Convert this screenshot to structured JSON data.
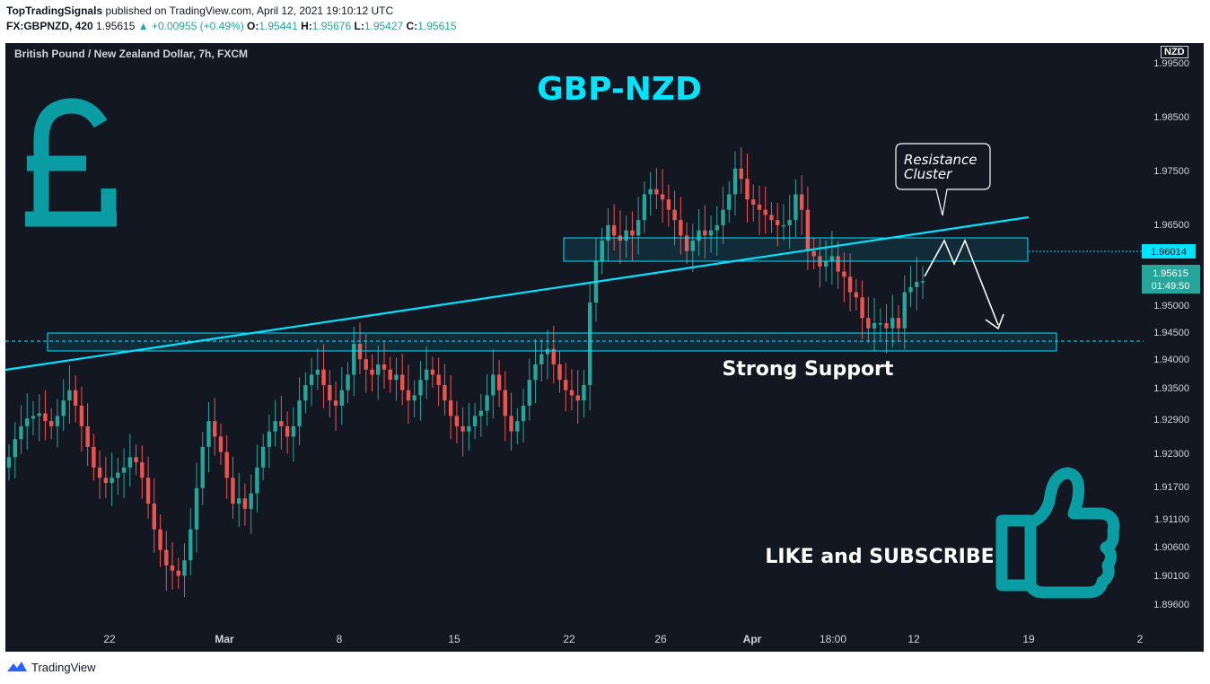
{
  "header": {
    "publisher": "TopTradingSignals",
    "published_text": " published on TradingView.com, April 12, 2021 19:10:12 UTC",
    "symbol": "FX:GBPNZD, 420",
    "last": " 1.95615 ",
    "change": "▲ +0.00955 (+0.49%)",
    "o_label": " O:",
    "o_val": "1.95441",
    "h_label": " H:",
    "h_val": "1.95676",
    "l_label": " L:",
    "l_val": "1.95427",
    "c_label": " C:",
    "c_val": "1.95615"
  },
  "chart_title": "British Pound / New Zealand Dollar, 7h, FXCM",
  "currency": "NZD",
  "annotations": {
    "pair_title": "GBP-NZD",
    "resistance": [
      "Resistance",
      "Cluster"
    ],
    "support": "Strong Support",
    "cta": "LIKE and SUBSCRIBE"
  },
  "price_labels": {
    "line": "1.96014",
    "last": "1.95615",
    "countdown": "01:49:50"
  },
  "footer": {
    "brand": "TradingView"
  },
  "colors": {
    "background": "#131722",
    "up": "#26a69a",
    "down": "#ef5350",
    "cyan": "#00e5ff",
    "teal_icon": "#0a9da4",
    "text": "#d1d4dc"
  },
  "chart_data": {
    "type": "candlestick",
    "title": "British Pound / New Zealand Dollar, 7h, FXCM",
    "y_ticks": [
      "1.99500",
      "1.98500",
      "1.97500",
      "1.96500",
      "1.95000",
      "1.94500",
      "1.94000",
      "1.93500",
      "1.92900",
      "1.92300",
      "1.91700",
      "1.91100",
      "1.90600",
      "1.90100",
      "1.89600"
    ],
    "x_ticks": [
      "22",
      "Mar",
      "8",
      "15",
      "22",
      "26",
      "Apr",
      "18:00",
      "12",
      "19",
      "2"
    ],
    "ylim": [
      1.8935,
      1.9985
    ],
    "grid": false,
    "support_zone": [
      1.942,
      1.9452
    ],
    "resistance_zone": [
      1.959,
      1.9633
    ],
    "current_price": 1.95615,
    "marked_price": 1.96014,
    "closes": [
      1.922,
      1.9255,
      1.928,
      1.9295,
      1.93,
      1.9305,
      1.929,
      1.928,
      1.93,
      1.933,
      1.935,
      1.932,
      1.928,
      1.924,
      1.92,
      1.918,
      1.917,
      1.918,
      1.919,
      1.92,
      1.922,
      1.921,
      1.918,
      1.913,
      1.908,
      1.904,
      1.901,
      1.9,
      1.899,
      1.902,
      1.908,
      1.916,
      1.924,
      1.929,
      1.926,
      1.923,
      1.918,
      1.913,
      1.914,
      1.912,
      1.915,
      1.92,
      1.924,
      1.927,
      1.929,
      1.928,
      1.926,
      1.928,
      1.933,
      1.936,
      1.938,
      1.939,
      1.936,
      1.933,
      1.932,
      1.935,
      1.938,
      1.944,
      1.941,
      1.939,
      1.938,
      1.94,
      1.939,
      1.937,
      1.938,
      1.935,
      1.933,
      1.934,
      1.937,
      1.939,
      1.938,
      1.936,
      1.933,
      1.93,
      1.928,
      1.927,
      1.928,
      1.93,
      1.931,
      1.934,
      1.938,
      1.935,
      1.93,
      1.927,
      1.929,
      1.932,
      1.937,
      1.94,
      1.942,
      1.943,
      1.94,
      1.937,
      1.935,
      1.934,
      1.933,
      1.936,
      1.952,
      1.96,
      1.964,
      1.967,
      1.965,
      1.964,
      1.966,
      1.965,
      1.968,
      1.973,
      1.974,
      1.973,
      1.972,
      1.97,
      1.968,
      1.965,
      1.962,
      1.964,
      1.966,
      1.965,
      1.966,
      1.967,
      1.97,
      1.973,
      1.978,
      1.976,
      1.972,
      1.971,
      1.97,
      1.969,
      1.968,
      1.967,
      1.967,
      1.968,
      1.973,
      1.97,
      1.962,
      1.961,
      1.959,
      1.96,
      1.961,
      1.958,
      1.957,
      1.954,
      1.953,
      1.949,
      1.947,
      1.948,
      1.948,
      1.947,
      1.949,
      1.947,
      1.954,
      1.955,
      1.956,
      1.95615
    ]
  }
}
